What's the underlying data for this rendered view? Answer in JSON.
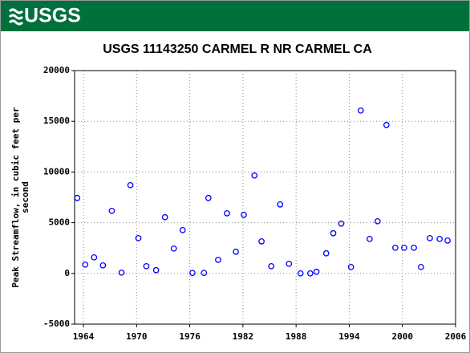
{
  "logo": "USGS",
  "chart_data": {
    "type": "scatter",
    "title": "USGS 11143250 CARMEL R NR CARMEL CA",
    "y_label": "Peak Streamflow, in cubic feet per second",
    "color": "#0000ff",
    "x": [
      1963.3,
      1964.2,
      1965.2,
      1966.2,
      1967.2,
      1968.3,
      1969.3,
      1970.2,
      1971.1,
      1972.2,
      1973.2,
      1974.2,
      1975.2,
      1976.3,
      1977.6,
      1978.1,
      1979.2,
      1980.2,
      1981.2,
      1982.1,
      1983.3,
      1984.1,
      1985.2,
      1986.2,
      1987.2,
      1988.5,
      1989.6,
      1990.3,
      1991.4,
      1992.2,
      1993.1,
      1994.2,
      1995.3,
      1996.3,
      1997.2,
      1998.2,
      1999.2,
      2000.2,
      2001.3,
      2002.1,
      2003.1,
      2004.2,
      2005.1
    ],
    "values": [
      7440,
      870,
      1580,
      790,
      6170,
      80,
      8700,
      3480,
      710,
      320,
      5540,
      2450,
      4270,
      50,
      50,
      7440,
      1340,
      5930,
      2140,
      5780,
      9650,
      3160,
      710,
      6800,
      950,
      0,
      0,
      160,
      1980,
      3960,
      4910,
      630,
      16060,
      3400,
      5140,
      14640,
      2530,
      2530,
      2530,
      630,
      3480,
      3400,
      3240
    ],
    "xlim": [
      1963,
      2006
    ],
    "xticks": [
      1964,
      1970,
      1976,
      1982,
      1988,
      1994,
      2000,
      2006
    ],
    "ylim": [
      -5000,
      20000
    ],
    "yticks": [
      -5000,
      0,
      5000,
      10000,
      15000,
      20000
    ],
    "grid": true
  }
}
